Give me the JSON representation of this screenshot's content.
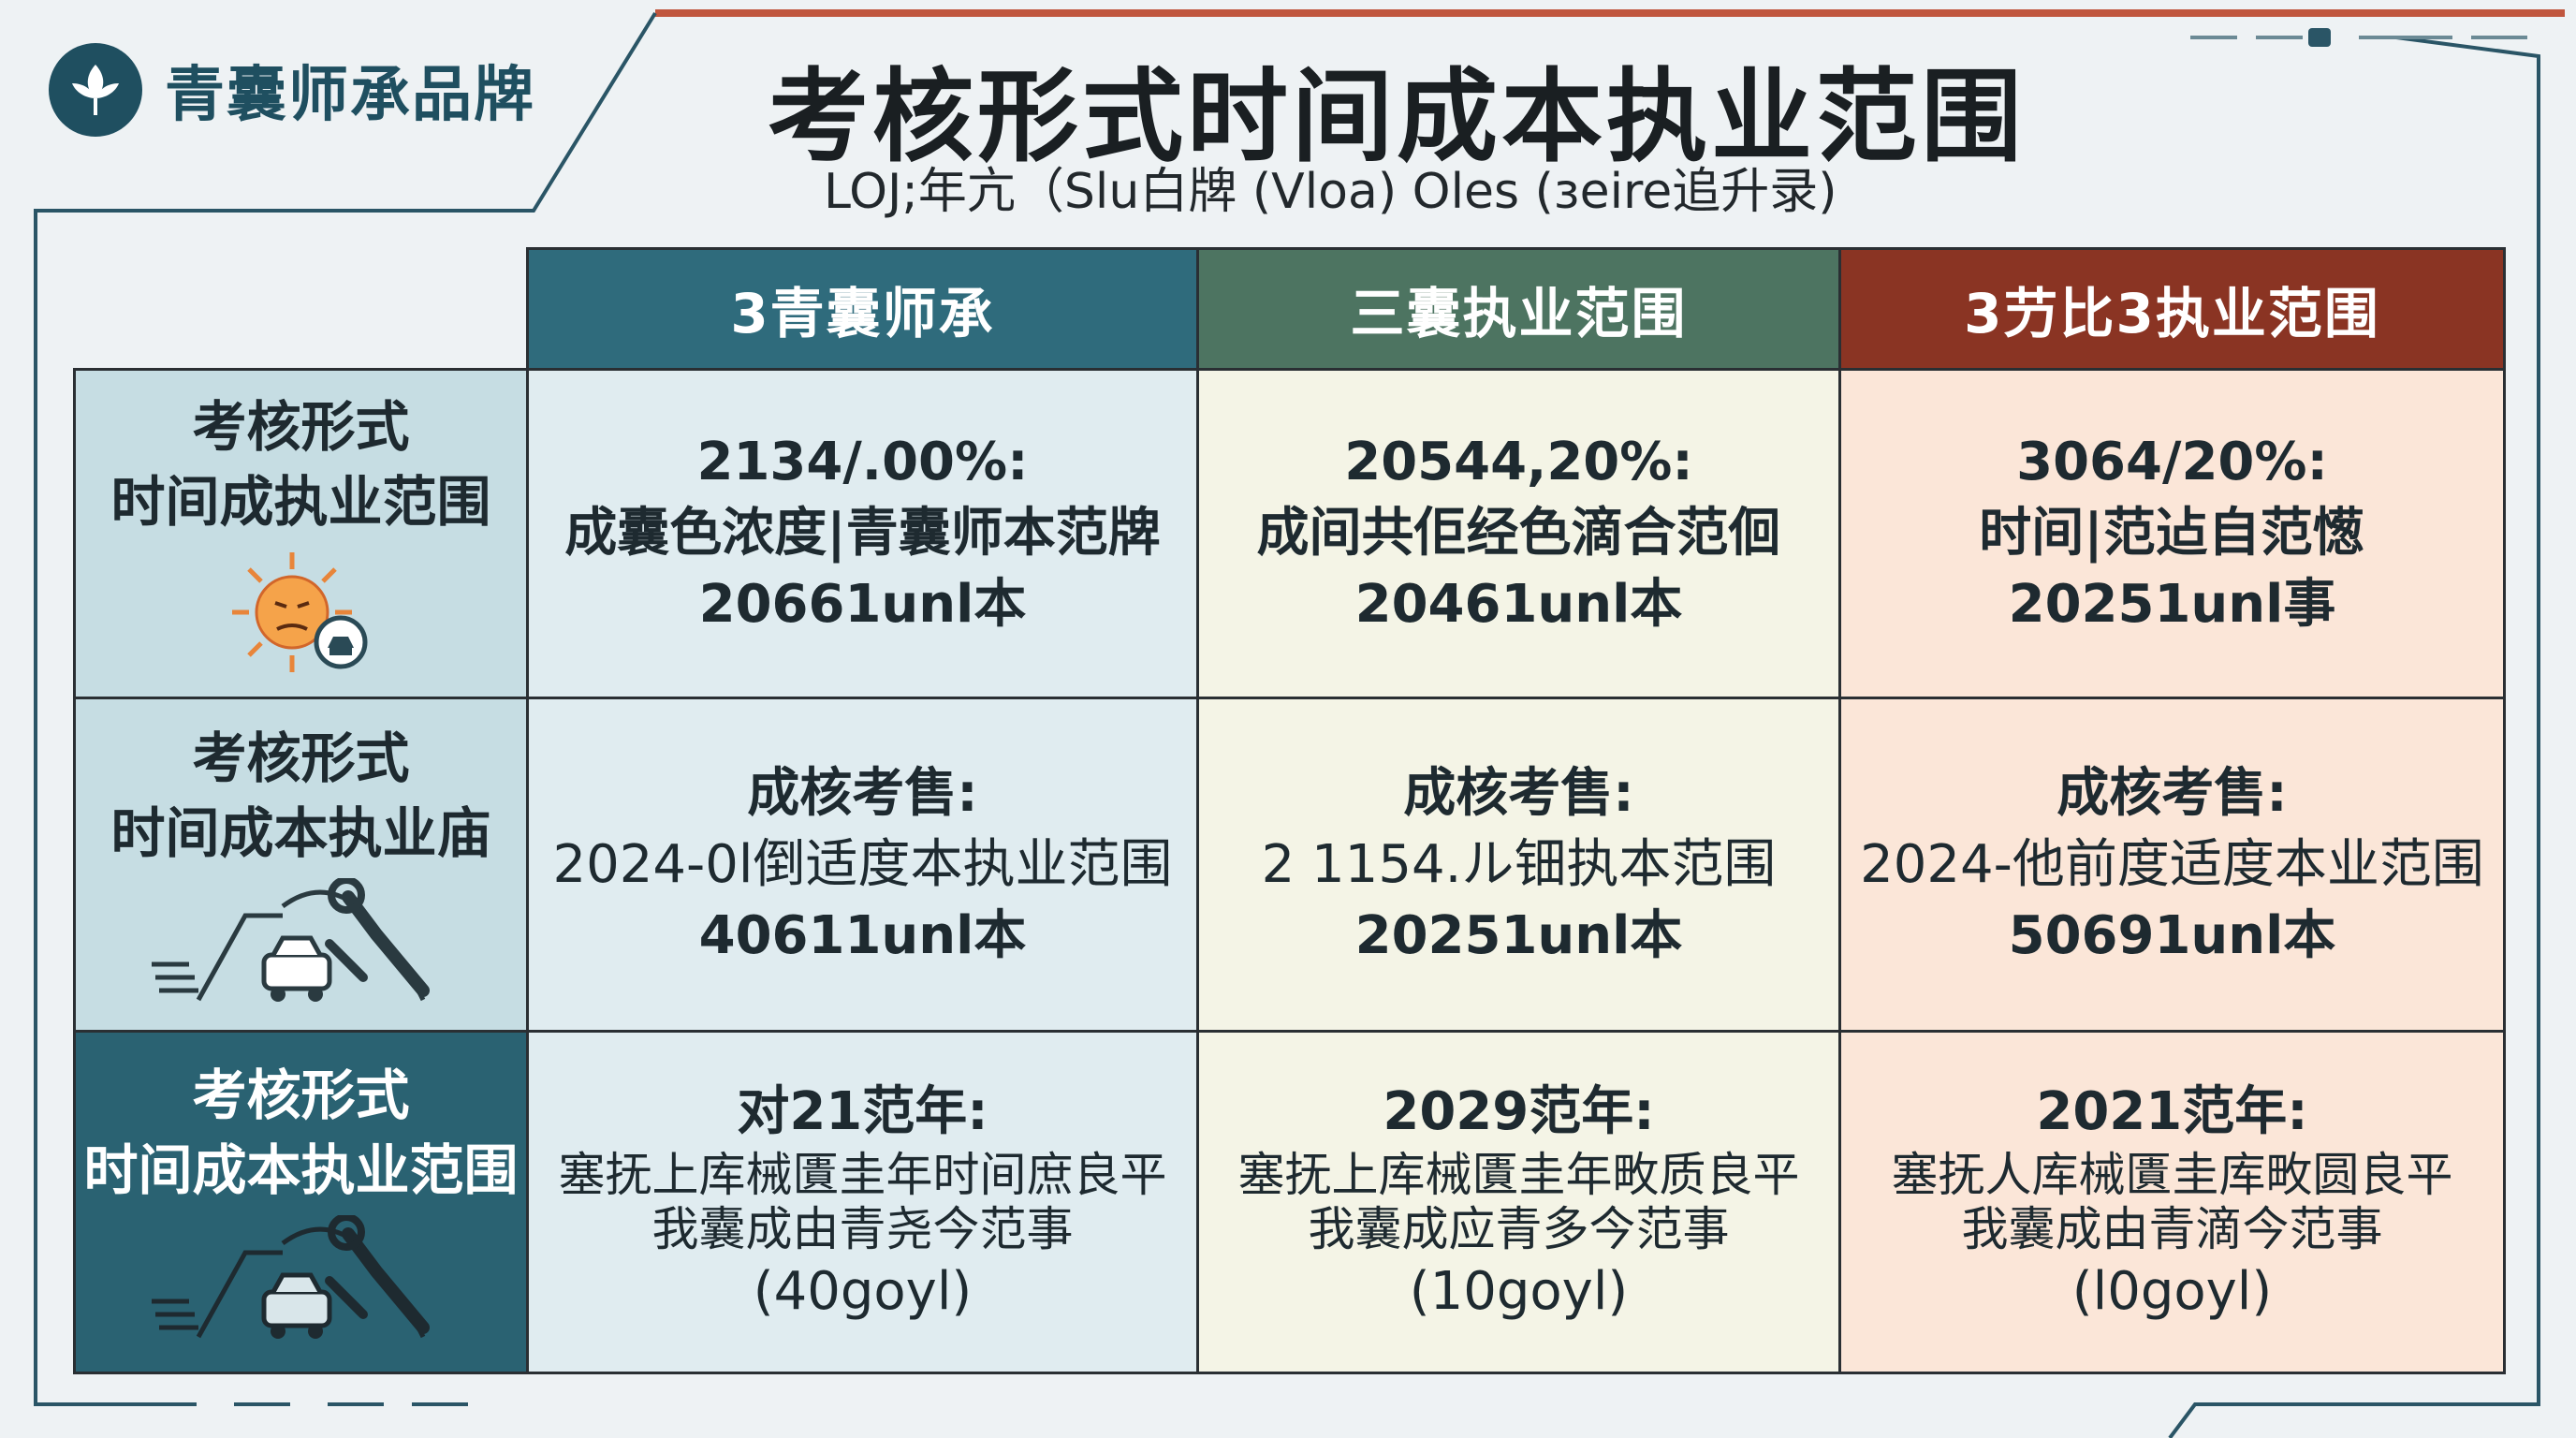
{
  "brand": {
    "name": "青囊师承品牌",
    "logo_icon": "leaf-sprout-icon"
  },
  "header": {
    "title": "考核形式时间成本执业范围",
    "subtitle": "LOJ;年亢（Slu白牌 (Vloa) Oles (зeire追升录)"
  },
  "colors": {
    "col1": "#2f6b7c",
    "col2": "#4d7461",
    "col3": "#8a3423",
    "row_head_dark": "#2a6272"
  },
  "table": {
    "columns": [
      "3青囊师承",
      "三囊执业范围",
      "3芀比3执业范围"
    ],
    "rows": [
      {
        "header": [
          "考核形式",
          "时间成执业范围"
        ],
        "icon": "stressed-sun-face-icon",
        "cells": [
          [
            "2134/.00%:",
            "成囊色浓度|青囊师本范牌",
            "20661unl本"
          ],
          [
            "20544,20%:",
            "成间共佢经色滴合范佪",
            "20461unl本"
          ],
          [
            "3064/20%:",
            "时间|范迠自范憽",
            "20251unl事"
          ]
        ]
      },
      {
        "header": [
          "考核形式",
          "时间成本执业庙"
        ],
        "icon": "road-car-wrench-icon",
        "cells": [
          [
            "成核考售:",
            "2024-0l倒适度本执业范围",
            "40611unl本"
          ],
          [
            "成核考售:",
            "2 1154.ル钿执本范围",
            "20251unl本"
          ],
          [
            "成核考售:",
            "2024-他前度适度本业范围",
            "50691unl本"
          ]
        ]
      },
      {
        "header": [
          "考核形式",
          "时间成本执业范围"
        ],
        "icon": "road-car-wrench-icon",
        "cells": [
          [
            "对21范年:",
            "塞抚上库械匱圭年时间庶良平",
            "我囊成由青尧今范事",
            "(40goyl)"
          ],
          [
            "2029范年:",
            "塞抚上库械匱圭年畋质良平",
            "我囊成应青多今范事",
            "(10goyl)"
          ],
          [
            "2021范年:",
            "塞抚人库械匱圭库畋圆良平",
            "我囊成由青滴今范事",
            "(l0goyl)"
          ]
        ]
      }
    ]
  }
}
